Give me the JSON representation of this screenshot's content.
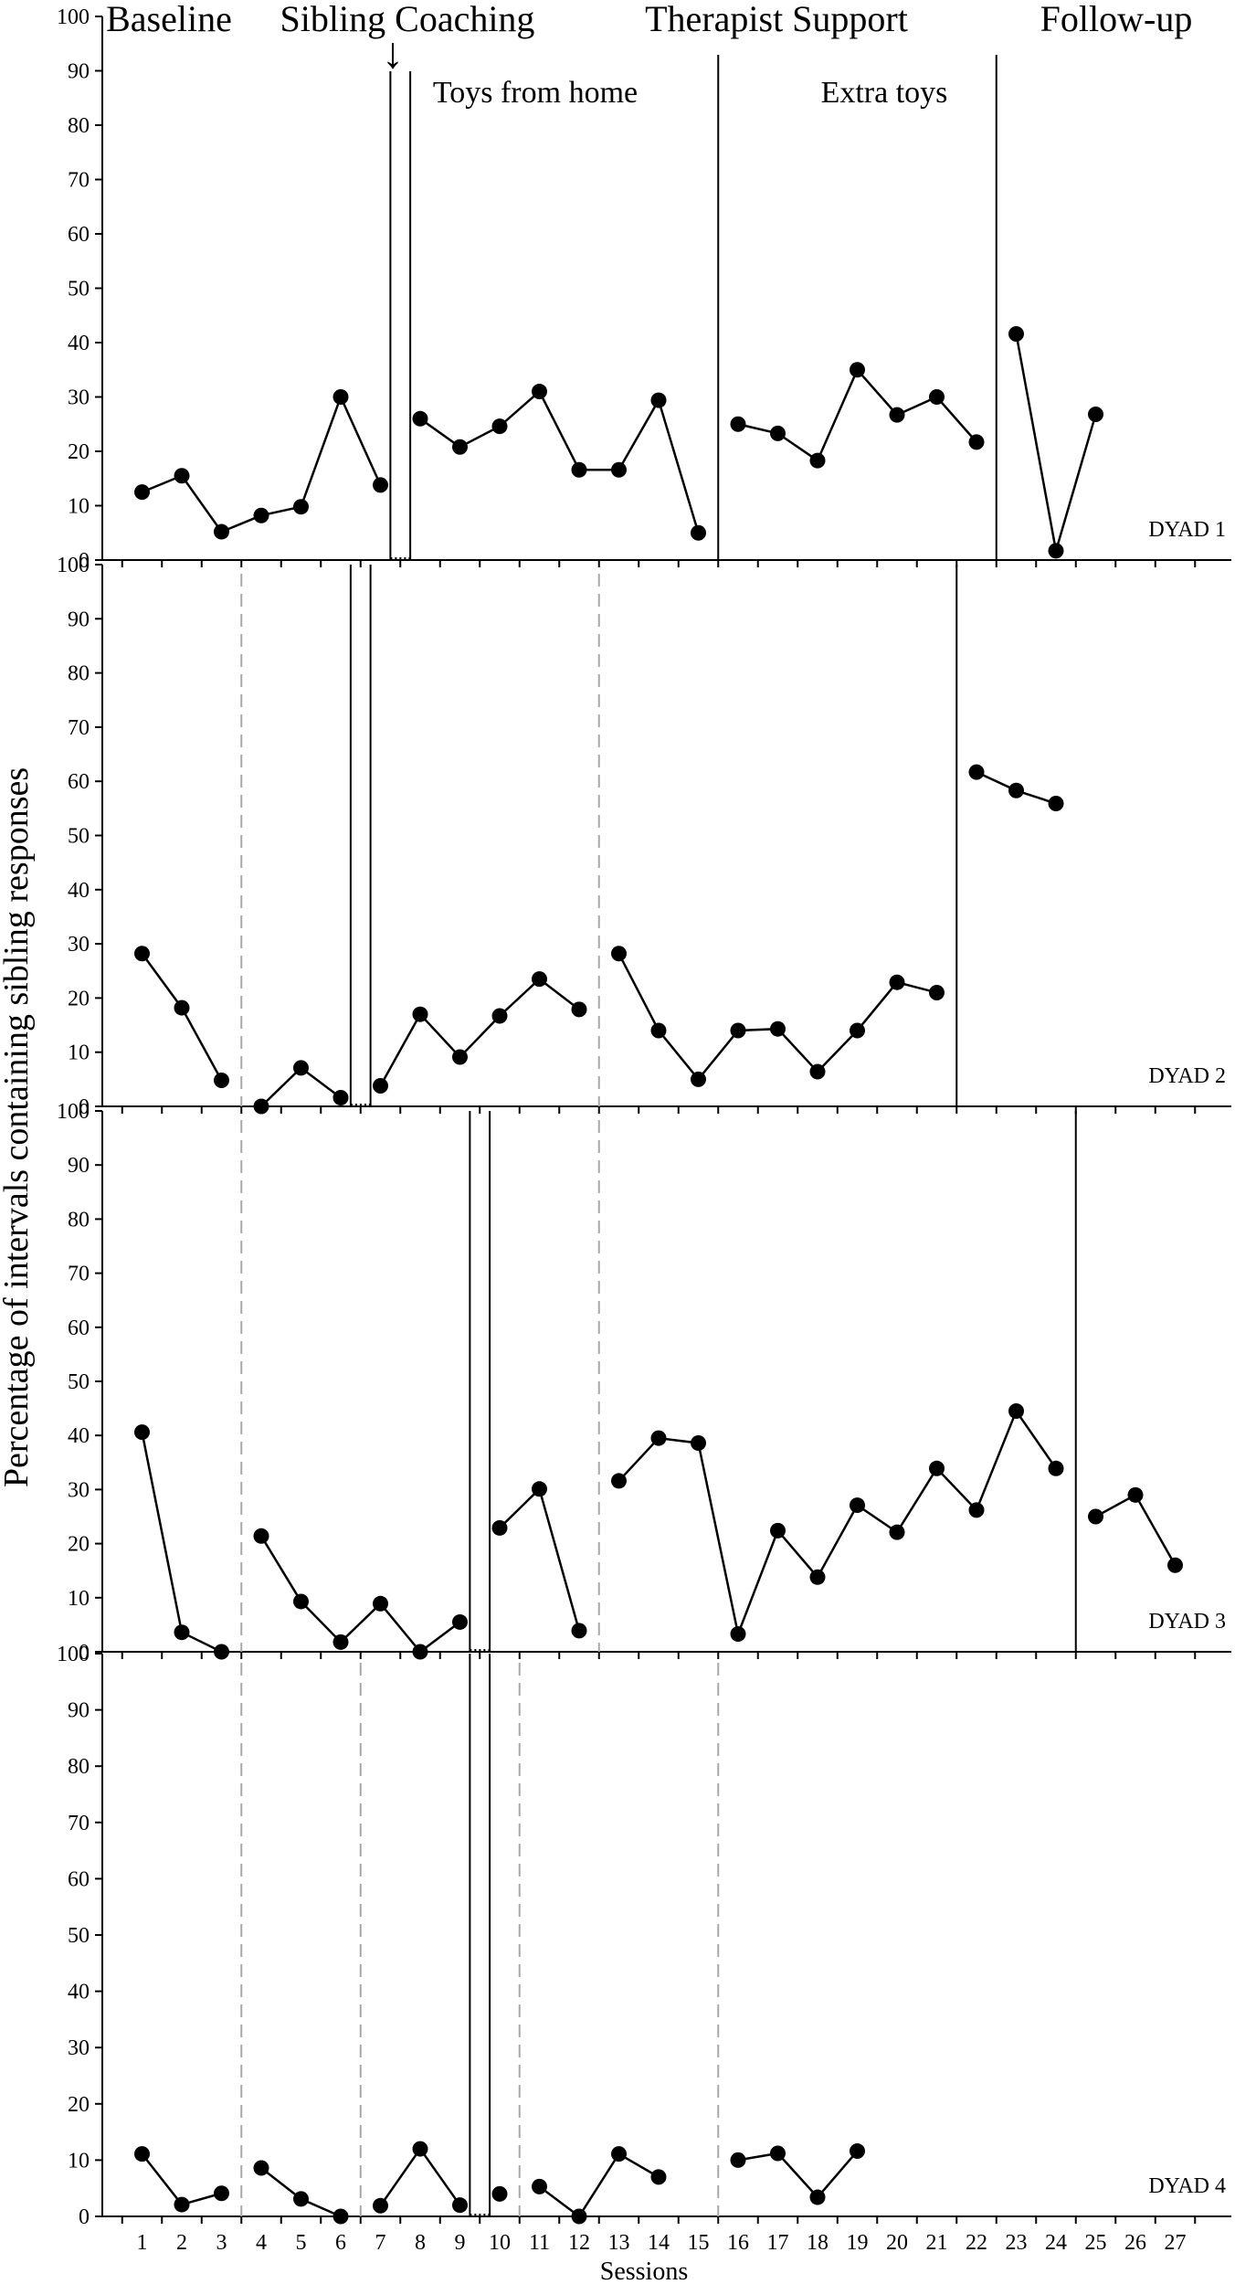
{
  "chart_data": {
    "type": "line",
    "ylabel": "Percentage of intervals containing sibling responses",
    "xlabel": "Sessions",
    "ylim": [
      0,
      100
    ],
    "yticks": [
      0,
      10,
      20,
      30,
      40,
      50,
      60,
      70,
      80,
      90,
      100
    ],
    "xticks": [
      1,
      2,
      3,
      4,
      5,
      6,
      7,
      8,
      9,
      10,
      11,
      12,
      13,
      14,
      15,
      16,
      17,
      18,
      19,
      20,
      21,
      22,
      23,
      24,
      25,
      26,
      27
    ],
    "phases": [
      "Baseline",
      "Sibling Coaching",
      "Therapist Support",
      "Follow-up"
    ],
    "sublabels": [
      "Toys from home",
      "Extra toys"
    ],
    "arrow_glyph": "↓",
    "panels": [
      {
        "label": "DYAD 1",
        "segments": [
          [
            [
              1,
              12.5
            ],
            [
              2,
              15.5
            ],
            [
              3,
              5.2
            ],
            [
              4,
              8.2
            ],
            [
              5,
              9.8
            ],
            [
              6,
              30
            ],
            [
              7,
              13.8
            ]
          ],
          [
            [
              8,
              26
            ],
            [
              9,
              20.8
            ],
            [
              10,
              24.6
            ],
            [
              11,
              31
            ],
            [
              12,
              16.6
            ],
            [
              13,
              16.6
            ],
            [
              14,
              29.4
            ],
            [
              15,
              5
            ]
          ],
          [
            [
              16,
              25
            ],
            [
              17,
              23.3
            ],
            [
              18,
              18.3
            ],
            [
              19,
              35
            ],
            [
              20,
              26.7
            ],
            [
              21,
              30
            ],
            [
              22,
              21.7
            ]
          ],
          [
            [
              23,
              41.6
            ],
            [
              24,
              1.7
            ],
            [
              25,
              26.8
            ]
          ]
        ],
        "solid_lines": [
          7.25,
          7.75,
          15.5,
          22.5
        ],
        "dashed_lines": [],
        "connector": [
          7.25,
          7.75
        ]
      },
      {
        "label": "DYAD 2",
        "segments": [
          [
            [
              1,
              28.2
            ],
            [
              2,
              18.2
            ],
            [
              3,
              4.8
            ]
          ],
          [
            [
              4,
              0
            ],
            [
              5,
              7.1
            ],
            [
              6,
              1.6
            ]
          ],
          [
            [
              7,
              3.8
            ],
            [
              8,
              17
            ],
            [
              9,
              9.1
            ],
            [
              10,
              16.7
            ],
            [
              11,
              23.5
            ],
            [
              12,
              17.9
            ]
          ],
          [
            [
              13,
              28.2
            ],
            [
              14,
              14
            ],
            [
              15,
              5
            ],
            [
              16,
              14
            ],
            [
              17,
              14.3
            ],
            [
              18,
              6.4
            ],
            [
              19,
              14
            ],
            [
              20,
              22.9
            ],
            [
              21,
              21
            ]
          ],
          [
            [
              22,
              61.7
            ],
            [
              23,
              58.3
            ],
            [
              24,
              55.9
            ]
          ]
        ],
        "solid_lines": [
          6.25,
          6.75,
          21.5
        ],
        "dashed_lines": [
          3.5,
          12.5
        ],
        "connector": [
          6.25,
          6.75
        ]
      },
      {
        "label": "DYAD 3",
        "segments": [
          [
            [
              1,
              40.6
            ],
            [
              2,
              3.6
            ],
            [
              3,
              0
            ]
          ],
          [
            [
              4,
              21.4
            ],
            [
              5,
              9.3
            ],
            [
              6,
              1.8
            ],
            [
              7,
              8.9
            ],
            [
              8,
              0
            ],
            [
              9,
              5.5
            ]
          ],
          [
            [
              10,
              22.9
            ],
            [
              11,
              30.1
            ],
            [
              12,
              3.9
            ]
          ],
          [
            [
              13,
              31.6
            ],
            [
              14,
              39.5
            ],
            [
              15,
              38.6
            ],
            [
              16,
              3.3
            ],
            [
              17,
              22.4
            ],
            [
              18,
              13.8
            ],
            [
              19,
              27.1
            ],
            [
              20,
              22.1
            ],
            [
              21,
              33.9
            ],
            [
              22,
              26.2
            ],
            [
              23,
              44.5
            ],
            [
              24,
              33.9
            ]
          ],
          [
            [
              25,
              25
            ],
            [
              26,
              29
            ],
            [
              27,
              16
            ]
          ]
        ],
        "solid_lines": [
          9.25,
          9.75,
          24.5
        ],
        "dashed_lines": [
          3.5,
          12.5
        ],
        "connector": [
          9.25,
          9.75
        ]
      },
      {
        "label": "DYAD 4",
        "segments": [
          [
            [
              1,
              11.1
            ],
            [
              2,
              2.1
            ],
            [
              3,
              4.1
            ]
          ],
          [
            [
              4,
              8.6
            ],
            [
              5,
              3.1
            ],
            [
              6,
              0
            ]
          ],
          [
            [
              7,
              1.9
            ],
            [
              8,
              12
            ],
            [
              9,
              2
            ]
          ],
          [
            [
              10,
              4
            ]
          ],
          [
            [
              11,
              5.3
            ],
            [
              12,
              0
            ],
            [
              13,
              11.1
            ],
            [
              14,
              7
            ]
          ],
          [
            [
              16,
              10
            ],
            [
              17,
              11.2
            ],
            [
              18,
              3.4
            ],
            [
              19,
              11.6
            ]
          ]
        ],
        "solid_lines": [
          9.25,
          9.75
        ],
        "dashed_lines": [
          3.5,
          6.5,
          10.5,
          15.5
        ],
        "connector": [
          9.25,
          9.75
        ]
      }
    ]
  }
}
